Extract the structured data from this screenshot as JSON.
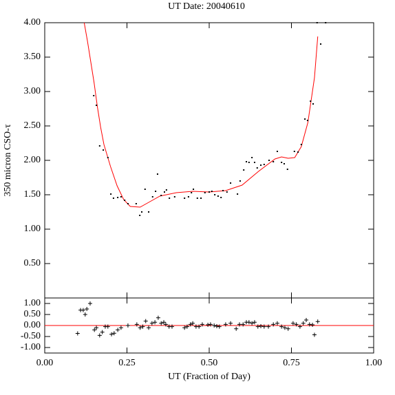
{
  "chart_data": [
    {
      "type": "scatter",
      "title": "UT Date: 20040610",
      "y_label": "350 micron CSO-τ",
      "xlim": [
        0,
        1
      ],
      "ylim": [
        0,
        4
      ],
      "yticks": [
        {
          "value": 4,
          "label": "4.00"
        },
        {
          "value": 3.5,
          "label": "3.50"
        },
        {
          "value": 3,
          "label": "3.00"
        },
        {
          "value": 2.5,
          "label": "2.50"
        },
        {
          "value": 2,
          "label": "2.00"
        },
        {
          "value": 1.5,
          "label": "1.50"
        },
        {
          "value": 1,
          "label": "1.00"
        },
        {
          "value": 0.5,
          "label": "0.50"
        }
      ],
      "color": "#000000",
      "x": [
        0.149,
        0.157,
        0.167,
        0.178,
        0.192,
        0.201,
        0.209,
        0.222,
        0.232,
        0.243,
        0.253,
        0.278,
        0.289,
        0.295,
        0.305,
        0.316,
        0.328,
        0.337,
        0.343,
        0.354,
        0.364,
        0.37,
        0.379,
        0.395,
        0.425,
        0.437,
        0.446,
        0.452,
        0.464,
        0.475,
        0.487,
        0.5,
        0.508,
        0.517,
        0.527,
        0.536,
        0.542,
        0.554,
        0.565,
        0.586,
        0.594,
        0.605,
        0.613,
        0.621,
        0.63,
        0.638,
        0.646,
        0.657,
        0.667,
        0.682,
        0.695,
        0.707,
        0.72,
        0.728,
        0.738,
        0.759,
        0.77,
        0.78,
        0.791,
        0.799,
        0.808,
        0.816,
        0.828,
        0.839,
        0.854
      ],
      "values": [
        2.94,
        2.8,
        2.21,
        2.15,
        2.04,
        1.51,
        1.45,
        1.46,
        1.47,
        1.42,
        1.37,
        1.37,
        1.2,
        1.25,
        1.58,
        1.25,
        1.47,
        1.55,
        1.8,
        1.49,
        1.54,
        1.57,
        1.45,
        1.47,
        1.45,
        1.47,
        1.53,
        1.58,
        1.45,
        1.45,
        1.53,
        1.54,
        1.55,
        1.5,
        1.48,
        1.46,
        1.56,
        1.54,
        1.67,
        1.51,
        1.7,
        1.86,
        1.98,
        1.97,
        2.04,
        1.97,
        1.89,
        1.93,
        1.94,
        2.0,
        1.98,
        2.13,
        1.97,
        1.95,
        1.87,
        2.13,
        2.12,
        2.23,
        2.6,
        2.58,
        2.86,
        2.82,
        4.0,
        3.69,
        4.0
      ],
      "fit": {
        "color": "#ff0000",
        "x": [
          0.12,
          0.13,
          0.14,
          0.15,
          0.16,
          0.17,
          0.18,
          0.2,
          0.22,
          0.24,
          0.26,
          0.29,
          0.32,
          0.35,
          0.4,
          0.45,
          0.5,
          0.55,
          0.6,
          0.65,
          0.7,
          0.72,
          0.74,
          0.76,
          0.78,
          0.8,
          0.82,
          0.83
        ],
        "values": [
          4.0,
          3.73,
          3.43,
          3.13,
          2.78,
          2.48,
          2.23,
          1.91,
          1.63,
          1.43,
          1.33,
          1.32,
          1.4,
          1.48,
          1.53,
          1.55,
          1.54,
          1.56,
          1.64,
          1.84,
          2.02,
          2.05,
          2.03,
          2.04,
          2.2,
          2.55,
          3.2,
          3.8
        ]
      }
    },
    {
      "type": "residual",
      "x_label": "UT (Fraction of Day)",
      "xlim": [
        0,
        1
      ],
      "ylim": [
        -1.25,
        1.25
      ],
      "xticks": [
        {
          "value": 0,
          "label": "0.00"
        },
        {
          "value": 0.25,
          "label": "0.25"
        },
        {
          "value": 0.5,
          "label": "0.50"
        },
        {
          "value": 0.75,
          "label": "0.75"
        },
        {
          "value": 1,
          "label": "1.00"
        }
      ],
      "yticks": [
        {
          "value": 1,
          "label": "1.00"
        },
        {
          "value": 0.5,
          "label": "0.50"
        },
        {
          "value": 0,
          "label": "0.00"
        },
        {
          "value": -0.5,
          "label": "-0.50"
        },
        {
          "value": -1,
          "label": "-1.00"
        }
      ],
      "color": "#000000",
      "hline": 0,
      "hline_color": "#ff0000",
      "x": [
        0.1,
        0.109,
        0.117,
        0.123,
        0.128,
        0.138,
        0.151,
        0.157,
        0.167,
        0.175,
        0.184,
        0.192,
        0.203,
        0.211,
        0.222,
        0.232,
        0.253,
        0.28,
        0.29,
        0.298,
        0.307,
        0.316,
        0.326,
        0.335,
        0.345,
        0.354,
        0.362,
        0.368,
        0.378,
        0.387,
        0.425,
        0.433,
        0.443,
        0.45,
        0.46,
        0.469,
        0.479,
        0.496,
        0.504,
        0.515,
        0.523,
        0.531,
        0.55,
        0.565,
        0.582,
        0.592,
        0.603,
        0.613,
        0.621,
        0.63,
        0.638,
        0.648,
        0.657,
        0.667,
        0.68,
        0.695,
        0.707,
        0.72,
        0.73,
        0.74,
        0.755,
        0.765,
        0.776,
        0.786,
        0.795,
        0.805,
        0.814,
        0.82,
        0.83
      ],
      "values": [
        -0.36,
        0.7,
        0.7,
        0.5,
        0.75,
        1.0,
        -0.2,
        -0.1,
        -0.45,
        -0.3,
        -0.05,
        -0.05,
        -0.4,
        -0.35,
        -0.2,
        -0.1,
        0.0,
        0.05,
        -0.1,
        -0.05,
        0.2,
        -0.1,
        0.1,
        0.15,
        0.35,
        0.1,
        0.15,
        0.05,
        -0.05,
        -0.05,
        -0.1,
        -0.05,
        0.05,
        0.1,
        -0.05,
        -0.05,
        0.05,
        0.03,
        0.05,
        0.0,
        -0.03,
        -0.05,
        0.05,
        0.1,
        -0.15,
        0.05,
        0.05,
        0.15,
        0.15,
        0.1,
        0.15,
        -0.05,
        -0.03,
        -0.05,
        -0.05,
        0.05,
        0.1,
        -0.05,
        -0.1,
        -0.15,
        0.1,
        0.05,
        -0.05,
        0.1,
        0.25,
        0.05,
        0.03,
        -0.42,
        0.18
      ]
    }
  ]
}
